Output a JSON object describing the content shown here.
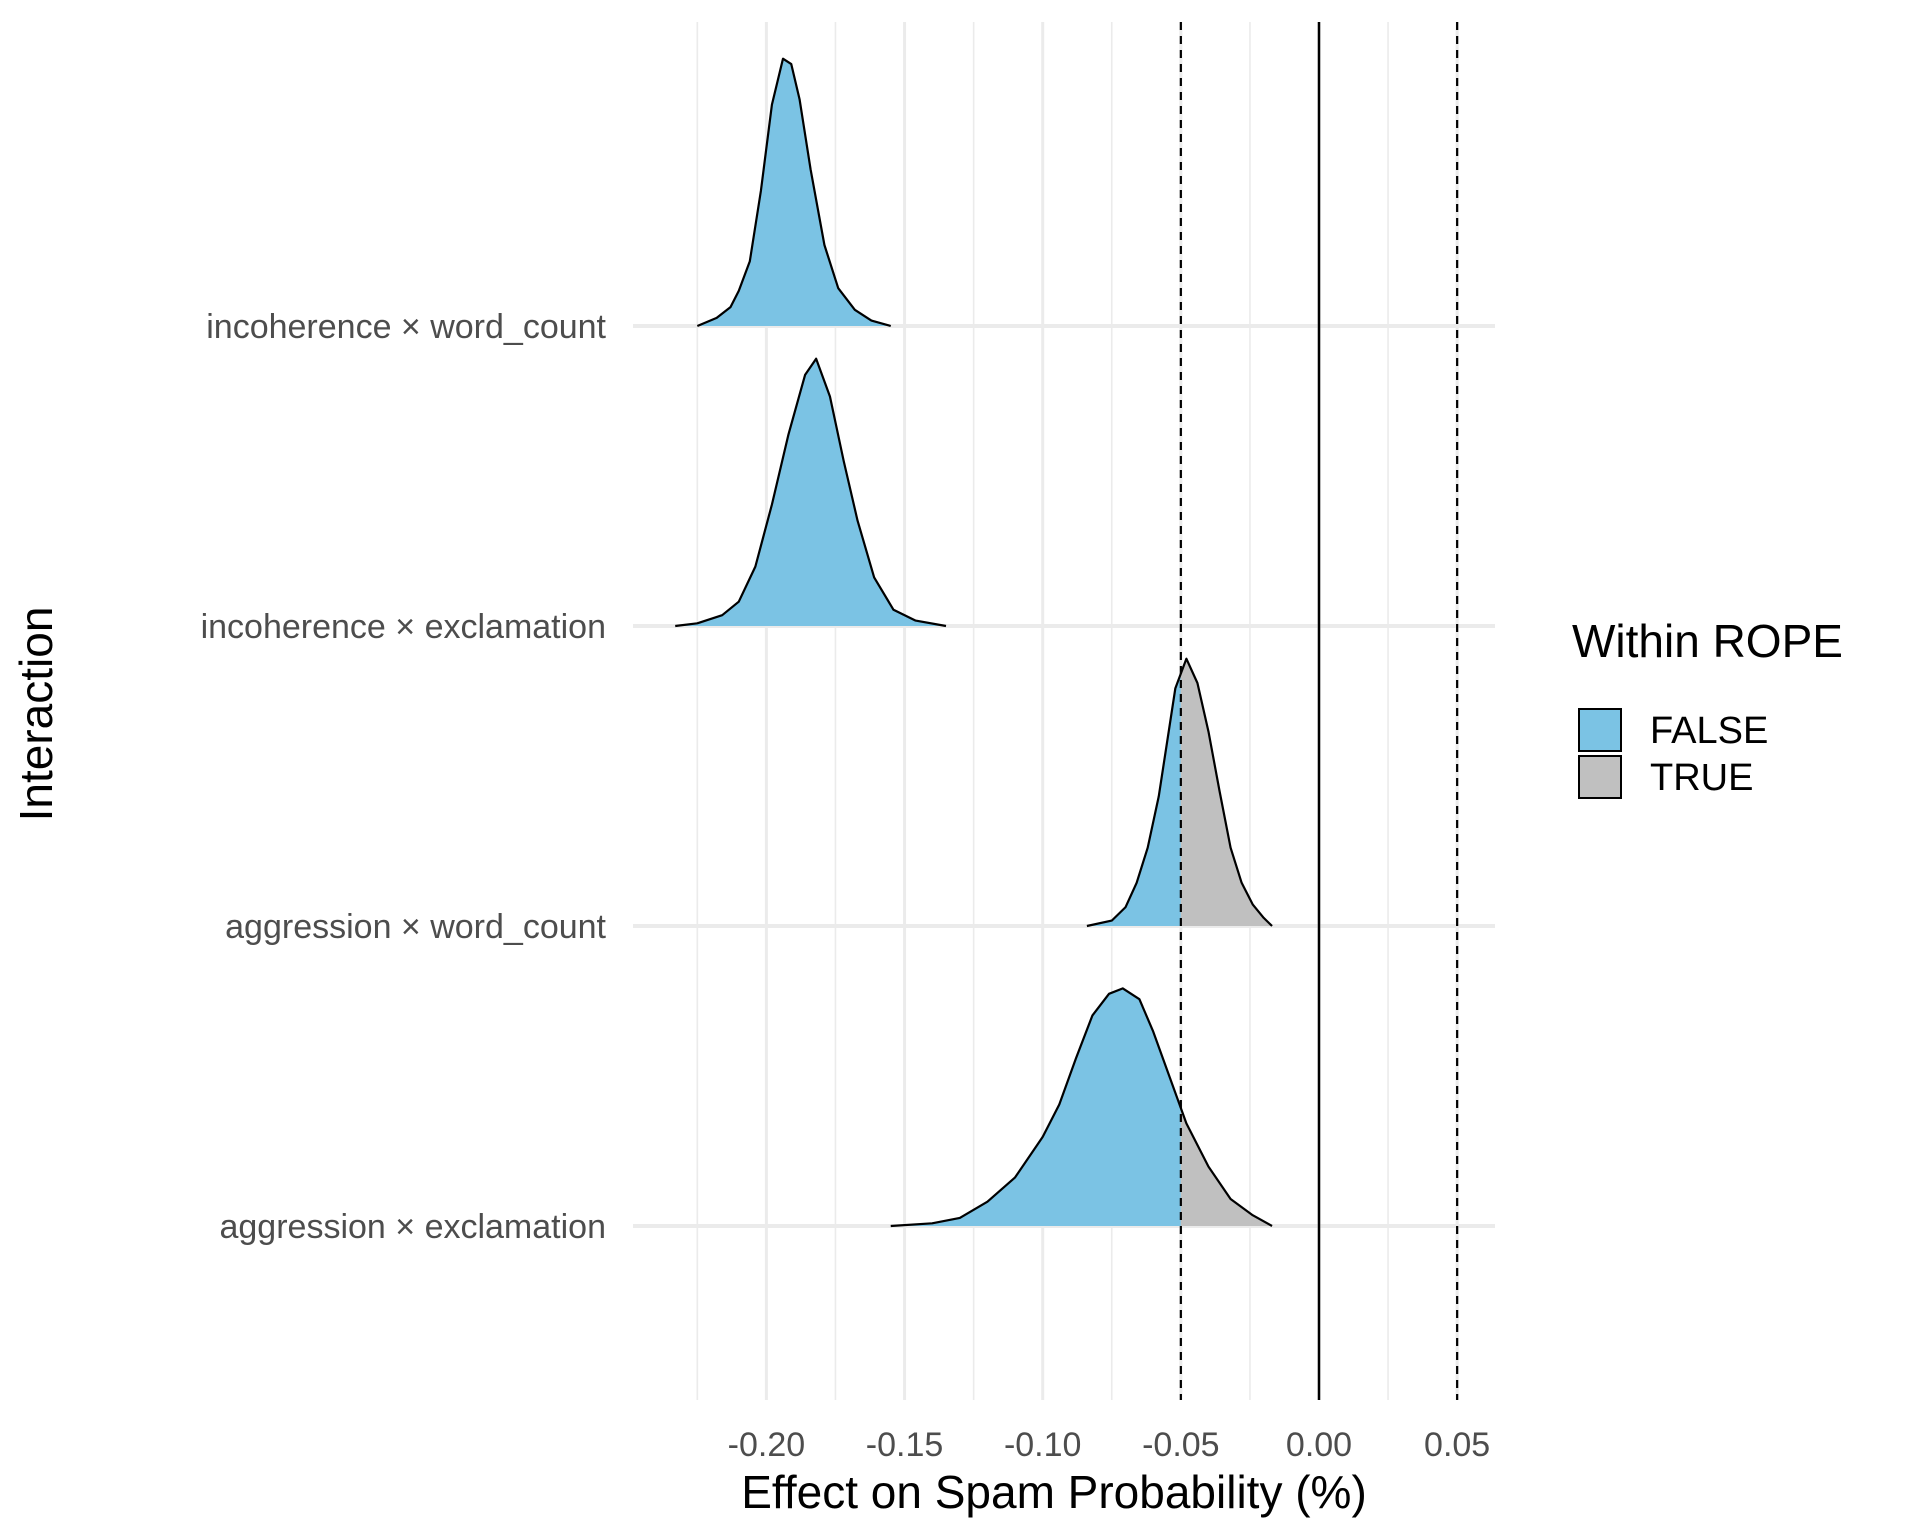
{
  "chart_data": {
    "type": "ridgeline-density",
    "xlabel": "Effect on Spam Probability (%)",
    "ylabel": "Interaction",
    "xlim": [
      -0.2275,
      0.0625
    ],
    "x_ticks": [
      -0.2,
      -0.15,
      -0.1,
      -0.05,
      0.0,
      0.05
    ],
    "x_tick_labels": [
      "-0.20",
      "-0.15",
      "-0.10",
      "-0.05",
      "0.00",
      "0.05"
    ],
    "grid": true,
    "rope": [
      -0.05,
      0.05
    ],
    "zero_line": 0.0,
    "categories": [
      "aggression × exclamation",
      "aggression × word_count",
      "incoherence × exclamation",
      "incoherence × word_count"
    ],
    "legend": {
      "title": "Within ROPE",
      "position": "right",
      "entries": [
        {
          "label": "FALSE",
          "color": "#7bc3e4"
        },
        {
          "label": "TRUE",
          "color": "#c0c0c0"
        }
      ]
    },
    "series": [
      {
        "name": "incoherence × word_count",
        "x": [
          -0.225,
          -0.218,
          -0.213,
          -0.21,
          -0.206,
          -0.202,
          -0.198,
          -0.194,
          -0.191,
          -0.188,
          -0.184,
          -0.179,
          -0.174,
          -0.168,
          -0.162,
          -0.155
        ],
        "density": [
          0.0,
          0.03,
          0.07,
          0.13,
          0.24,
          0.5,
          0.82,
          0.99,
          0.97,
          0.84,
          0.58,
          0.3,
          0.14,
          0.06,
          0.02,
          0.0
        ]
      },
      {
        "name": "incoherence × exclamation",
        "x": [
          -0.233,
          -0.225,
          -0.216,
          -0.21,
          -0.204,
          -0.198,
          -0.192,
          -0.186,
          -0.182,
          -0.177,
          -0.172,
          -0.167,
          -0.161,
          -0.154,
          -0.146,
          -0.135
        ],
        "density": [
          0.0,
          0.01,
          0.04,
          0.09,
          0.22,
          0.45,
          0.71,
          0.93,
          0.99,
          0.85,
          0.61,
          0.39,
          0.18,
          0.06,
          0.02,
          0.0
        ]
      },
      {
        "name": "aggression × word_count",
        "x": [
          -0.084,
          -0.075,
          -0.07,
          -0.066,
          -0.062,
          -0.058,
          -0.055,
          -0.052,
          -0.048,
          -0.044,
          -0.04,
          -0.036,
          -0.032,
          -0.028,
          -0.024,
          -0.02,
          -0.017
        ],
        "density": [
          0.0,
          0.02,
          0.07,
          0.16,
          0.29,
          0.48,
          0.68,
          0.88,
          0.99,
          0.9,
          0.72,
          0.5,
          0.29,
          0.16,
          0.08,
          0.03,
          0.0
        ]
      },
      {
        "name": "aggression × exclamation",
        "x": [
          -0.155,
          -0.14,
          -0.13,
          -0.12,
          -0.11,
          -0.1,
          -0.094,
          -0.088,
          -0.082,
          -0.076,
          -0.071,
          -0.065,
          -0.06,
          -0.054,
          -0.048,
          -0.04,
          -0.032,
          -0.024,
          -0.017
        ],
        "density": [
          0.0,
          0.01,
          0.03,
          0.09,
          0.18,
          0.33,
          0.45,
          0.62,
          0.78,
          0.86,
          0.88,
          0.84,
          0.72,
          0.55,
          0.38,
          0.22,
          0.1,
          0.04,
          0.0
        ]
      }
    ]
  }
}
